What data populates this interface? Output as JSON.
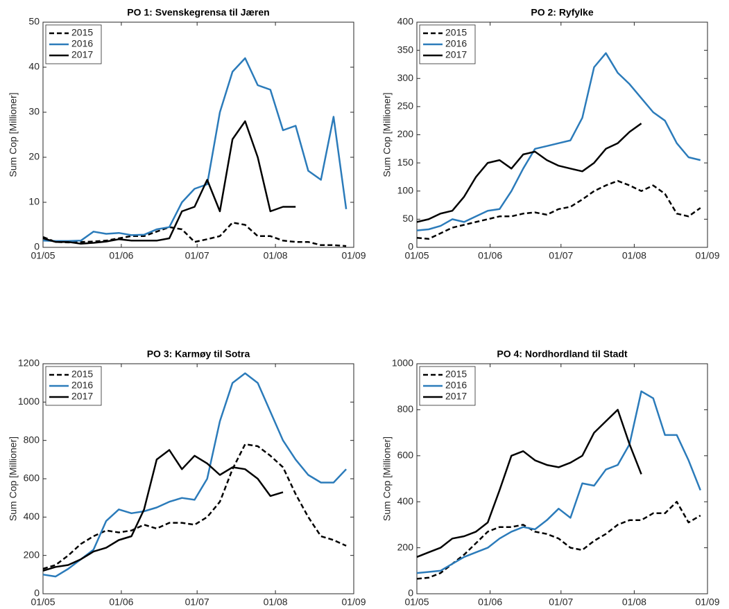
{
  "chart_data": [
    {
      "type": "line",
      "title": "PO 1: Svenskegrensa til Jæren",
      "ylabel": "Sum Cop [Millioner]",
      "x": [
        "01/05",
        "06/05",
        "11/05",
        "16/05",
        "21/05",
        "26/05",
        "31/05",
        "05/06",
        "10/06",
        "15/06",
        "20/06",
        "25/06",
        "30/06",
        "05/07",
        "10/07",
        "15/07",
        "20/07",
        "25/07",
        "30/07",
        "04/08",
        "09/08",
        "14/08",
        "19/08",
        "24/08",
        "29/08"
      ],
      "xlim": [
        "01/05",
        "01/09"
      ],
      "xticks": [
        "01/05",
        "01/06",
        "01/07",
        "01/08",
        "01/09"
      ],
      "ylim": [
        0,
        50
      ],
      "yticks": [
        0,
        10,
        20,
        30,
        40,
        50
      ],
      "legend": "upper left",
      "series": [
        {
          "name": "2015",
          "color": "#000000",
          "style": "dashed",
          "values": [
            2.3,
            1.2,
            1.1,
            1.2,
            1.3,
            1.5,
            2,
            2.5,
            2.5,
            3.5,
            4.5,
            4,
            1.2,
            1.8,
            2.5,
            5.5,
            5,
            2.5,
            2.5,
            1.5,
            1.2,
            1.2,
            0.5,
            0.5,
            0.3
          ]
        },
        {
          "name": "2016",
          "color": "#2b7bba",
          "style": "solid",
          "values": [
            1.5,
            1.4,
            1.4,
            1.5,
            3.5,
            3,
            3.2,
            2.7,
            2.8,
            4,
            4.5,
            10,
            13,
            14,
            30,
            39,
            42,
            36,
            35,
            26,
            27,
            17,
            15,
            29,
            8.5
          ]
        },
        {
          "name": "2017",
          "color": "#000000",
          "style": "solid",
          "values": [
            2,
            1.2,
            1.2,
            0.8,
            1,
            1.3,
            1.8,
            1.5,
            1.5,
            1.5,
            2,
            8,
            9,
            15,
            8,
            24,
            28,
            20,
            8,
            9,
            9,
            null,
            null,
            null,
            null
          ]
        }
      ]
    },
    {
      "type": "line",
      "title": "PO 2: Ryfylke",
      "ylabel": "Sum Cop [Millioner]",
      "x": [
        "01/05",
        "06/05",
        "11/05",
        "16/05",
        "21/05",
        "26/05",
        "31/05",
        "05/06",
        "10/06",
        "15/06",
        "20/06",
        "25/06",
        "30/06",
        "05/07",
        "10/07",
        "15/07",
        "20/07",
        "25/07",
        "30/07",
        "04/08",
        "09/08",
        "14/08",
        "19/08",
        "24/08",
        "29/08"
      ],
      "xlim": [
        "01/05",
        "01/09"
      ],
      "xticks": [
        "01/05",
        "01/06",
        "01/07",
        "01/08",
        "01/09"
      ],
      "ylim": [
        0,
        400
      ],
      "yticks": [
        0,
        50,
        100,
        150,
        200,
        250,
        300,
        350,
        400
      ],
      "legend": "upper left",
      "series": [
        {
          "name": "2015",
          "color": "#000000",
          "style": "dashed",
          "values": [
            17,
            15,
            25,
            35,
            40,
            45,
            50,
            55,
            55,
            60,
            62,
            58,
            68,
            72,
            85,
            100,
            110,
            118,
            110,
            100,
            110,
            95,
            60,
            55,
            70
          ]
        },
        {
          "name": "2016",
          "color": "#2b7bba",
          "style": "solid",
          "values": [
            30,
            32,
            38,
            50,
            45,
            55,
            65,
            68,
            100,
            140,
            175,
            180,
            185,
            190,
            230,
            320,
            345,
            310,
            290,
            265,
            240,
            225,
            185,
            160,
            155
          ]
        },
        {
          "name": "2017",
          "color": "#000000",
          "style": "solid",
          "values": [
            45,
            50,
            60,
            65,
            90,
            125,
            150,
            155,
            140,
            165,
            170,
            155,
            145,
            140,
            135,
            150,
            175,
            185,
            205,
            220,
            null,
            null,
            null,
            null,
            null
          ]
        }
      ]
    },
    {
      "type": "line",
      "title": "PO 3: Karmøy til Sotra",
      "ylabel": "Sum Cop [Millioner]",
      "x": [
        "01/05",
        "06/05",
        "11/05",
        "16/05",
        "21/05",
        "26/05",
        "31/05",
        "05/06",
        "10/06",
        "15/06",
        "20/06",
        "25/06",
        "30/06",
        "05/07",
        "10/07",
        "15/07",
        "20/07",
        "25/07",
        "30/07",
        "04/08",
        "09/08",
        "14/08",
        "19/08",
        "24/08",
        "29/08"
      ],
      "xlim": [
        "01/05",
        "01/09"
      ],
      "xticks": [
        "01/05",
        "01/06",
        "01/07",
        "01/08",
        "01/09"
      ],
      "ylim": [
        0,
        1200
      ],
      "yticks": [
        0,
        200,
        400,
        600,
        800,
        1000,
        1200
      ],
      "legend": "upper left",
      "series": [
        {
          "name": "2015",
          "color": "#000000",
          "style": "dashed",
          "values": [
            130,
            150,
            200,
            260,
            300,
            330,
            320,
            330,
            360,
            340,
            370,
            370,
            360,
            400,
            480,
            650,
            780,
            770,
            720,
            660,
            520,
            400,
            300,
            280,
            250
          ]
        },
        {
          "name": "2016",
          "color": "#2b7bba",
          "style": "solid",
          "values": [
            100,
            90,
            130,
            180,
            230,
            380,
            440,
            420,
            430,
            450,
            480,
            500,
            490,
            600,
            900,
            1100,
            1150,
            1100,
            950,
            800,
            700,
            620,
            580,
            580,
            650
          ]
        },
        {
          "name": "2017",
          "color": "#000000",
          "style": "solid",
          "values": [
            120,
            140,
            150,
            180,
            220,
            240,
            280,
            300,
            440,
            700,
            750,
            650,
            720,
            680,
            620,
            660,
            650,
            600,
            510,
            530,
            null,
            null,
            null,
            null,
            null
          ]
        }
      ]
    },
    {
      "type": "line",
      "title": "PO 4: Nordhordland til Stadt",
      "ylabel": "Sum Cop [Millioner]",
      "x": [
        "01/05",
        "06/05",
        "11/05",
        "16/05",
        "21/05",
        "26/05",
        "31/05",
        "05/06",
        "10/06",
        "15/06",
        "20/06",
        "25/06",
        "30/06",
        "05/07",
        "10/07",
        "15/07",
        "20/07",
        "25/07",
        "30/07",
        "04/08",
        "09/08",
        "14/08",
        "19/08",
        "24/08",
        "29/08"
      ],
      "xlim": [
        "01/05",
        "01/09"
      ],
      "xticks": [
        "01/05",
        "01/06",
        "01/07",
        "01/08",
        "01/09"
      ],
      "ylim": [
        0,
        1000
      ],
      "yticks": [
        0,
        200,
        400,
        600,
        800,
        1000
      ],
      "legend": "upper left",
      "series": [
        {
          "name": "2015",
          "color": "#000000",
          "style": "dashed",
          "values": [
            65,
            70,
            90,
            130,
            170,
            220,
            270,
            290,
            290,
            300,
            270,
            260,
            240,
            200,
            190,
            230,
            260,
            300,
            320,
            320,
            350,
            350,
            400,
            310,
            340
          ]
        },
        {
          "name": "2016",
          "color": "#2b7bba",
          "style": "solid",
          "values": [
            90,
            95,
            100,
            130,
            160,
            180,
            200,
            240,
            270,
            290,
            280,
            320,
            370,
            330,
            480,
            470,
            540,
            560,
            650,
            880,
            850,
            690,
            690,
            580,
            450
          ]
        },
        {
          "name": "2017",
          "color": "#000000",
          "style": "solid",
          "values": [
            160,
            180,
            200,
            240,
            250,
            270,
            310,
            450,
            600,
            620,
            580,
            560,
            550,
            570,
            600,
            700,
            750,
            800,
            650,
            520,
            null,
            null,
            null,
            null,
            null
          ]
        }
      ]
    }
  ]
}
